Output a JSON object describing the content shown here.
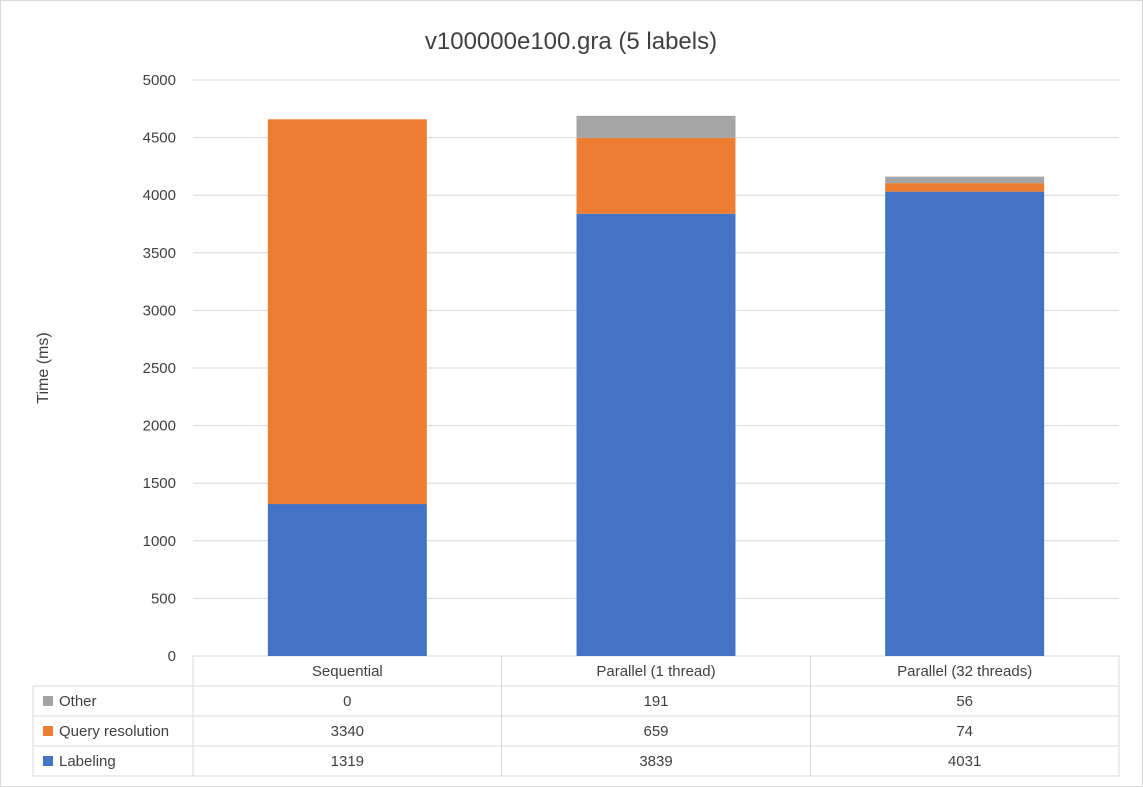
{
  "chart_data": {
    "type": "bar",
    "stacked": true,
    "title": "v100000e100.gra (5 labels)",
    "ylabel": "Time (ms)",
    "xlabel": "",
    "ylim": [
      0,
      5000
    ],
    "yticks": [
      0,
      500,
      1000,
      1500,
      2000,
      2500,
      3000,
      3500,
      4000,
      4500,
      5000
    ],
    "grid": true,
    "legend": "data-table",
    "categories": [
      "Sequential",
      "Parallel (1 thread)",
      "Parallel (32 threads)"
    ],
    "series": [
      {
        "name": "Labeling",
        "color": "#4472c4",
        "values": [
          1319,
          3839,
          4031
        ]
      },
      {
        "name": "Query resolution",
        "color": "#ed7d31",
        "values": [
          3340,
          659,
          74
        ]
      },
      {
        "name": "Other",
        "color": "#a5a5a5",
        "values": [
          0,
          191,
          56
        ]
      }
    ],
    "table_row_order": [
      "Other",
      "Query resolution",
      "Labeling"
    ]
  }
}
